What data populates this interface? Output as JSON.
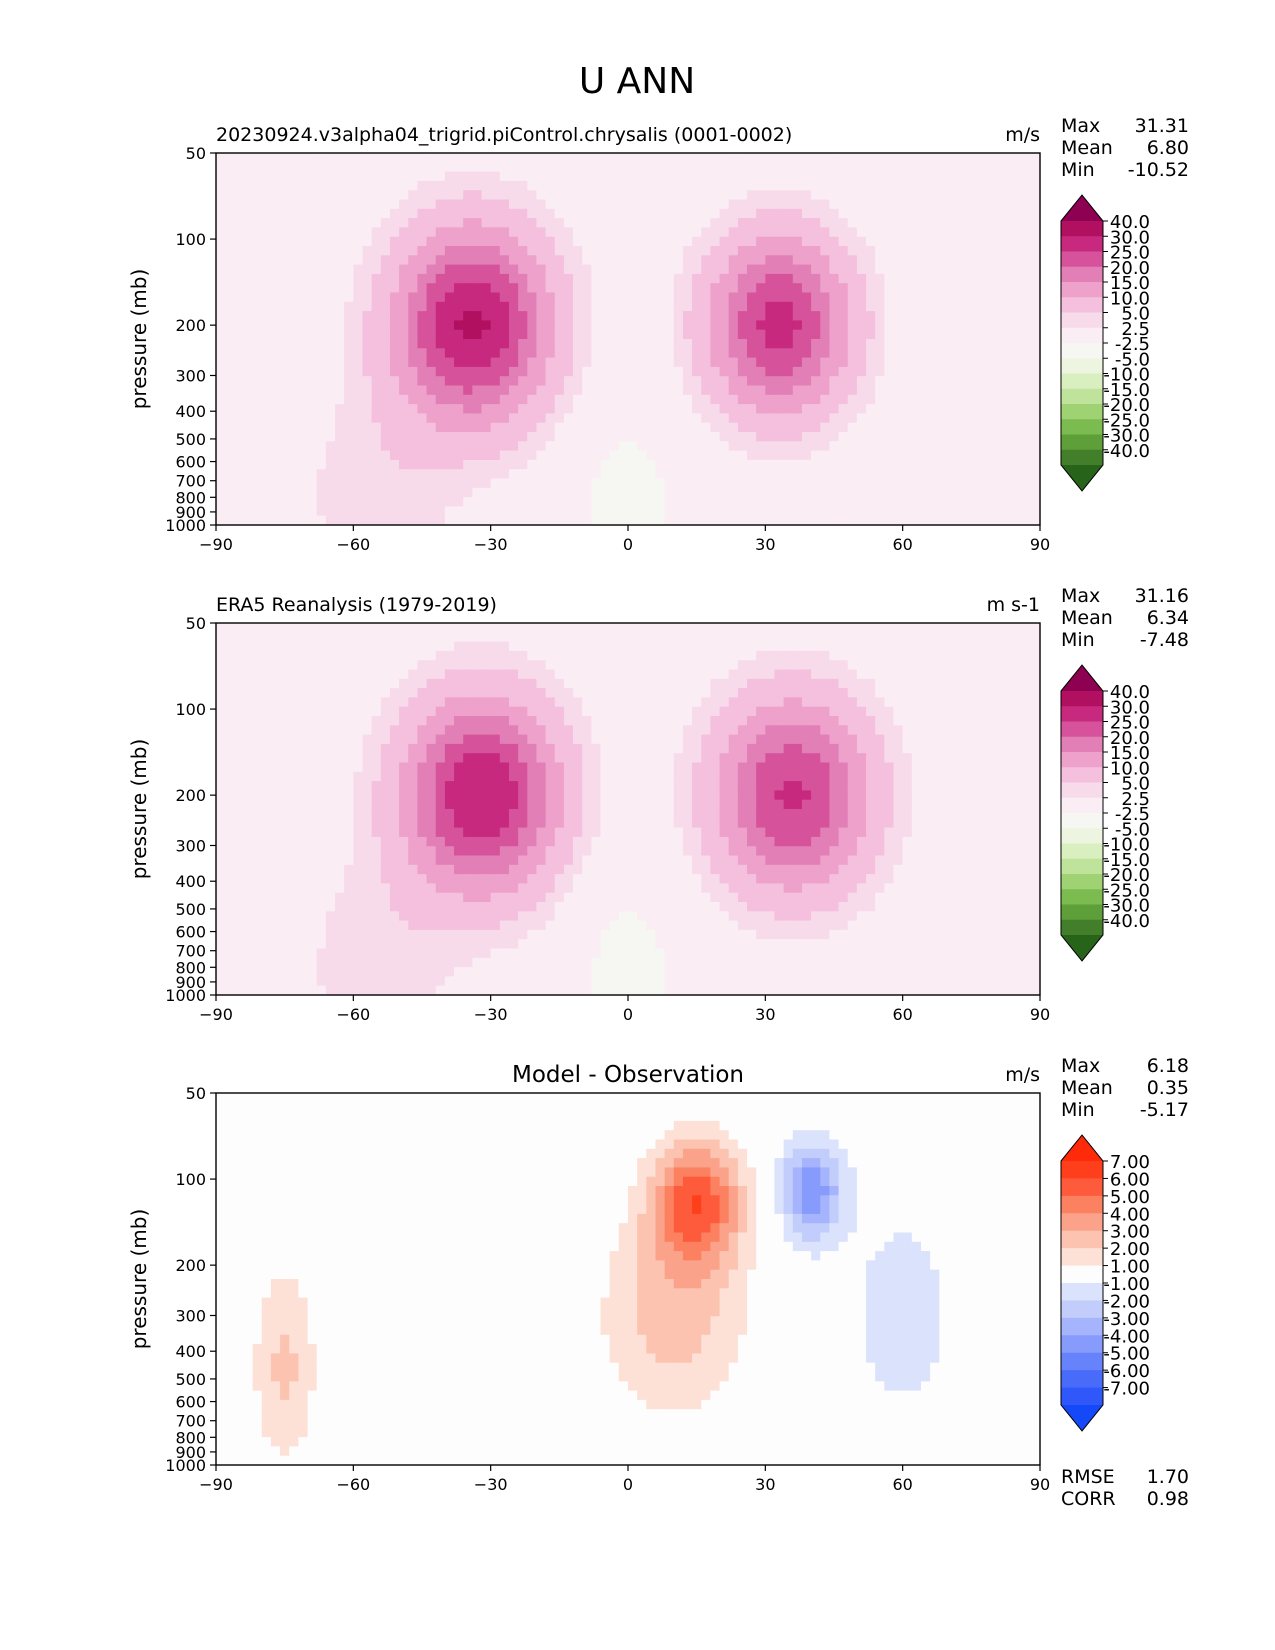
{
  "figure": {
    "title": "U ANN"
  },
  "chart_data": [
    {
      "type": "heatmap",
      "panel": "test",
      "title": "20230924.v3alpha04_trigrid.piControl.chrysalis (0001-0002)",
      "units": "m/s",
      "ylabel": "pressure (mb)",
      "xlim": [
        -90,
        90
      ],
      "ylim": [
        1000,
        50
      ],
      "x_ticks": [
        "−90",
        "−60",
        "−30",
        "0",
        "30",
        "60",
        "90"
      ],
      "y_ticks": [
        "50",
        "100",
        "200",
        "300",
        "400",
        "500",
        "600",
        "700",
        "800",
        "900",
        "1000"
      ],
      "stats": [
        {
          "label": "Max",
          "value": "31.31"
        },
        {
          "label": "Mean",
          "value": "6.80"
        },
        {
          "label": "Min",
          "value": "-10.52"
        }
      ],
      "colorbar": {
        "levels": [
          "40.0",
          "30.0",
          "25.0",
          "20.0",
          "15.0",
          "10.0",
          "5.0",
          "2.5",
          "-2.5",
          "-5.0",
          "-10.0",
          "-15.0",
          "-20.0",
          "-25.0",
          "-30.0",
          "-40.0"
        ],
        "colors": [
          "#8e0152",
          "#b0105f",
          "#c7297f",
          "#d6539b",
          "#e27fb6",
          "#eda1cb",
          "#f4c0dd",
          "#f8dbeb",
          "#fbedf4",
          "#f6f6f2",
          "#edf5e1",
          "#d9efbf",
          "#bfe39a",
          "#9ed272",
          "#7cbb4f",
          "#5e9f39",
          "#437f2a",
          "#276419"
        ]
      },
      "jets": [
        {
          "lat": -34,
          "p": 200,
          "peak": 31
        },
        {
          "lat": 33,
          "p": 200,
          "peak": 27
        }
      ]
    },
    {
      "type": "heatmap",
      "panel": "reference",
      "title": "ERA5 Reanalysis (1979-2019)",
      "units": "m s-1",
      "ylabel": "pressure (mb)",
      "xlim": [
        -90,
        90
      ],
      "ylim": [
        1000,
        50
      ],
      "x_ticks": [
        "−90",
        "−60",
        "−30",
        "0",
        "30",
        "60",
        "90"
      ],
      "y_ticks": [
        "50",
        "100",
        "200",
        "300",
        "400",
        "500",
        "600",
        "700",
        "800",
        "900",
        "1000"
      ],
      "stats": [
        {
          "label": "Max",
          "value": "31.16"
        },
        {
          "label": "Mean",
          "value": "6.34"
        },
        {
          "label": "Min",
          "value": "-7.48"
        }
      ],
      "colorbar": {
        "levels": [
          "40.0",
          "30.0",
          "25.0",
          "20.0",
          "15.0",
          "10.0",
          "5.0",
          "2.5",
          "-2.5",
          "-5.0",
          "-10.0",
          "-15.0",
          "-20.0",
          "-25.0",
          "-30.0",
          "-40.0"
        ],
        "colors": [
          "#8e0152",
          "#b0105f",
          "#c7297f",
          "#d6539b",
          "#e27fb6",
          "#eda1cb",
          "#f4c0dd",
          "#f8dbeb",
          "#fbedf4",
          "#f6f6f2",
          "#edf5e1",
          "#d9efbf",
          "#bfe39a",
          "#9ed272",
          "#7cbb4f",
          "#5e9f39",
          "#437f2a",
          "#276419"
        ]
      },
      "jets": [
        {
          "lat": -32,
          "p": 200,
          "peak": 31
        },
        {
          "lat": 36,
          "p": 200,
          "peak": 26
        }
      ]
    },
    {
      "type": "heatmap",
      "panel": "difference",
      "title": "Model - Observation",
      "units": "m/s",
      "ylabel": "pressure (mb)",
      "xlim": [
        -90,
        90
      ],
      "ylim": [
        1000,
        50
      ],
      "x_ticks": [
        "−90",
        "−60",
        "−30",
        "0",
        "30",
        "60",
        "90"
      ],
      "y_ticks": [
        "50",
        "100",
        "200",
        "300",
        "400",
        "500",
        "600",
        "700",
        "800",
        "900",
        "1000"
      ],
      "stats": [
        {
          "label": "Max",
          "value": "6.18"
        },
        {
          "label": "Mean",
          "value": "0.35"
        },
        {
          "label": "Min",
          "value": "-5.17"
        }
      ],
      "extra_stats": [
        {
          "label": "RMSE",
          "value": "1.70"
        },
        {
          "label": "CORR",
          "value": "0.98"
        }
      ],
      "colorbar": {
        "levels": [
          "7.00",
          "6.00",
          "5.00",
          "4.00",
          "3.00",
          "2.00",
          "1.00",
          "-1.00",
          "-2.00",
          "-3.00",
          "-4.00",
          "-5.00",
          "-6.00",
          "-7.00"
        ],
        "colors": [
          "#ff2a0a",
          "#ff3f1c",
          "#fd5b3b",
          "#fc8161",
          "#fba38a",
          "#fcc3b1",
          "#fde0d6",
          "#fdfdfd",
          "#dbe2fc",
          "#c2cdfc",
          "#a5b4fc",
          "#869bfb",
          "#6783fb",
          "#496bfa",
          "#2f57fa",
          "#1449fa"
        ]
      }
    }
  ]
}
